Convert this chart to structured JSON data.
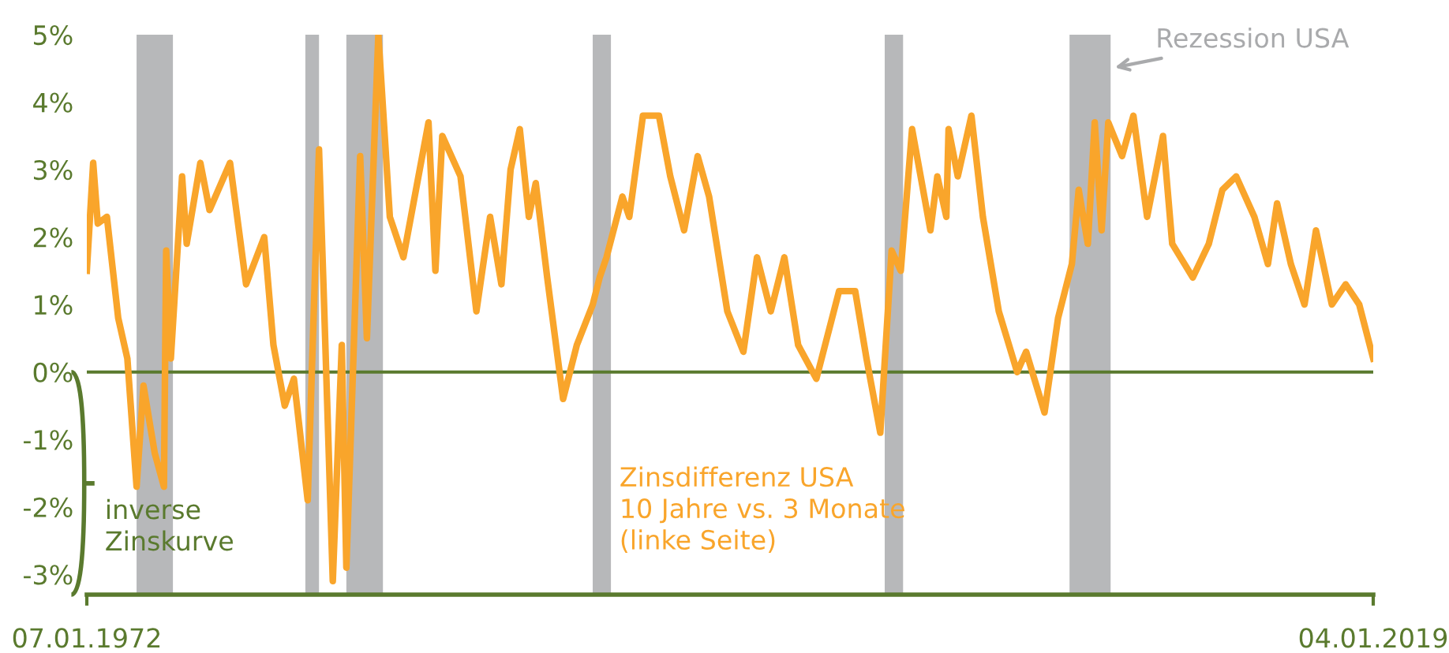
{
  "chart_data": {
    "type": "line",
    "x": [
      "1972-01-07",
      "1972-04",
      "1972-06",
      "1972-10",
      "1973-03",
      "1973-07",
      "1973-11",
      "1974-02",
      "1974-07",
      "1974-11",
      "1974-12",
      "1975-02",
      "1975-07",
      "1975-09",
      "1976-03",
      "1976-07",
      "1977-04",
      "1977-11",
      "1978-07",
      "1978-11",
      "1979-04",
      "1979-08",
      "1980-02",
      "1980-07",
      "1980-09",
      "1981-01",
      "1981-05",
      "1981-07",
      "1982-01",
      "1982-04",
      "1982-09",
      "1983-02",
      "1983-08",
      "1984-07",
      "1984-10",
      "1985-01",
      "1985-09",
      "1986-04",
      "1986-10",
      "1987-03",
      "1987-07",
      "1987-11",
      "1988-03",
      "1988-06",
      "1988-11",
      "1989-06",
      "1989-12",
      "1990-07",
      "1990-10",
      "1991-01",
      "1991-08",
      "1991-11",
      "1992-05",
      "1992-12",
      "1993-05",
      "1993-11",
      "1994-05",
      "1994-10",
      "1995-06",
      "1996-01",
      "1996-07",
      "1997-01",
      "1997-07",
      "1998-01",
      "1998-09",
      "1999-07",
      "2000-02",
      "2000-07",
      "2001-01",
      "2001-06",
      "2001-10",
      "2002-03",
      "2002-11",
      "2003-02",
      "2003-06",
      "2003-07",
      "2003-11",
      "2004-05",
      "2004-10",
      "2005-05",
      "2006-01",
      "2006-05",
      "2007-01",
      "2007-07",
      "2008-01",
      "2008-04",
      "2008-08",
      "2008-11",
      "2009-02",
      "2009-05",
      "2009-11",
      "2010-04",
      "2010-10",
      "2011-05",
      "2011-09",
      "2012-06",
      "2013-01",
      "2013-07",
      "2014-01",
      "2014-09",
      "2015-03",
      "2015-07",
      "2016-01",
      "2016-07",
      "2016-12",
      "2017-07",
      "2018-01",
      "2018-07",
      "2019-01-04"
    ],
    "series": [
      {
        "name": "Zinsdifferenz USA\n10 Jahre vs. 3 Monate\n(linke Seite)",
        "color": "#f9a52b",
        "values": [
          1.5,
          3.1,
          2.2,
          2.3,
          0.8,
          0.2,
          -1.7,
          -0.2,
          -1.2,
          -1.7,
          1.8,
          0.2,
          2.9,
          1.9,
          3.1,
          2.4,
          3.1,
          1.3,
          2.0,
          0.4,
          -0.5,
          -0.1,
          -1.9,
          3.3,
          1.2,
          -3.1,
          0.4,
          -2.9,
          3.2,
          0.5,
          5.0,
          2.3,
          1.7,
          3.7,
          1.5,
          3.5,
          2.9,
          0.9,
          2.3,
          1.3,
          3.0,
          3.6,
          2.3,
          2.8,
          1.4,
          -0.4,
          0.4,
          1.0,
          1.4,
          1.7,
          2.6,
          2.3,
          3.8,
          3.8,
          2.9,
          2.1,
          3.2,
          2.6,
          0.9,
          0.3,
          1.7,
          0.9,
          1.7,
          0.4,
          -0.1,
          1.2,
          1.2,
          0.2,
          -0.9,
          1.8,
          1.5,
          3.6,
          2.1,
          2.9,
          2.3,
          3.6,
          2.9,
          3.8,
          2.3,
          0.9,
          0.0,
          0.3,
          -0.6,
          0.8,
          1.6,
          2.7,
          1.9,
          3.7,
          2.1,
          3.7,
          3.2,
          3.8,
          2.3,
          3.5,
          1.9,
          1.4,
          1.9,
          2.7,
          2.9,
          2.3,
          1.6,
          2.5,
          1.6,
          1.0,
          2.1,
          1.0,
          1.3,
          1.0,
          0.2
        ]
      }
    ],
    "xlim": [
      "1972-01-07",
      "2019-01-04"
    ],
    "xticks": [
      {
        "value": "1972-01-07",
        "label": "07.01.1972"
      },
      {
        "value": "2019-01-04",
        "label": "04.01.2019"
      }
    ],
    "ylim": [
      -3.3,
      5.0
    ],
    "yticks": [
      {
        "value": -3,
        "label": "-3%"
      },
      {
        "value": -2,
        "label": "-2%"
      },
      {
        "value": -1,
        "label": "-1%"
      },
      {
        "value": 0,
        "label": "0%"
      },
      {
        "value": 1,
        "label": "1%"
      },
      {
        "value": 2,
        "label": "2%"
      },
      {
        "value": 3,
        "label": "3%"
      },
      {
        "value": 4,
        "label": "4%"
      },
      {
        "value": 5,
        "label": "5%"
      }
    ],
    "ref_lines": [
      {
        "axis": "y",
        "value": 0,
        "color": "#5a7a2e"
      }
    ],
    "bands": [
      {
        "axis": "x",
        "from": "1973-11",
        "to": "1975-03",
        "color": "#b7b8ba"
      },
      {
        "axis": "x",
        "from": "1980-01",
        "to": "1980-07",
        "color": "#b7b8ba"
      },
      {
        "axis": "x",
        "from": "1981-07",
        "to": "1982-11",
        "color": "#b7b8ba"
      },
      {
        "axis": "x",
        "from": "1990-07",
        "to": "1991-03",
        "color": "#b7b8ba"
      },
      {
        "axis": "x",
        "from": "2001-03",
        "to": "2001-11",
        "color": "#b7b8ba"
      },
      {
        "axis": "x",
        "from": "2007-12",
        "to": "2009-06",
        "color": "#b7b8ba",
        "label": "Rezession USA"
      }
    ],
    "annotations": [
      "inverse\nZinskurve"
    ],
    "grid": false,
    "line_style": "solid",
    "marker": "none"
  }
}
